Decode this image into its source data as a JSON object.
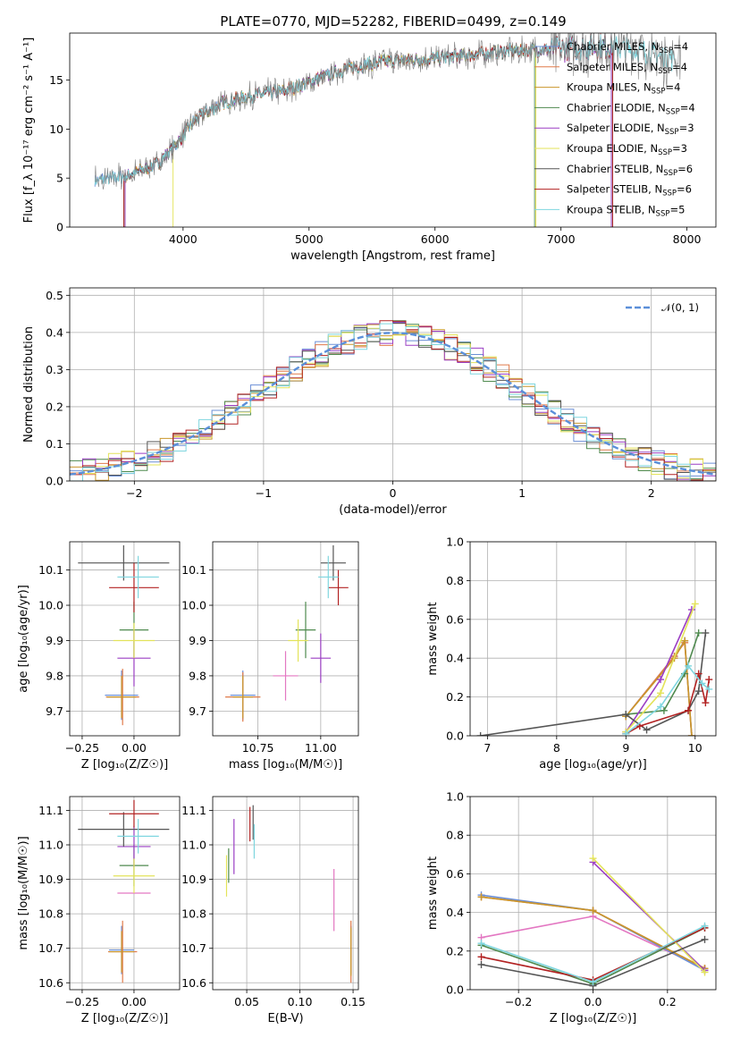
{
  "title": "PLATE=0770, MJD=52282, FIBERID=0499, z=0.149",
  "colors": {
    "Chabrier MILES": "#6b8fd6",
    "Salpeter MILES": "#e07a4a",
    "Kroupa MILES": "#c9962b",
    "Chabrier ELODIE": "#4f8a4f",
    "Salpeter ELODIE": "#9b3fc4",
    "Kroupa ELODIE": "#e3e35a",
    "Chabrier STELIB": "#555555",
    "Salpeter STELIB": "#b22222",
    "Kroupa STELIB": "#7fd6df",
    "data": "#808080",
    "normal": "#5b8fd9"
  },
  "chart_data": [
    {
      "type": "line",
      "xlabel": "wavelength [Angstrom, rest frame]",
      "ylabel": "Flux [f_λ 10⁻¹⁷ erg cm⁻² s⁻¹ A⁻¹]",
      "xlim": [
        3100,
        8230
      ],
      "ylim": [
        0,
        19.8
      ],
      "xticks": [
        4000,
        5000,
        6000,
        7000,
        8000
      ],
      "yticks": [
        0,
        5,
        10,
        15
      ],
      "legend": [
        {
          "base": "Chabrier MILES, N",
          "sub": "SSP",
          "tail": "=4"
        },
        {
          "base": "Salpeter MILES, N",
          "sub": "SSP",
          "tail": "=4"
        },
        {
          "base": "Kroupa MILES, N",
          "sub": "SSP",
          "tail": "=4"
        },
        {
          "base": "Chabrier ELODIE, N",
          "sub": "SSP",
          "tail": "=4"
        },
        {
          "base": "Salpeter ELODIE, N",
          "sub": "SSP",
          "tail": "=3"
        },
        {
          "base": "Kroupa ELODIE, N",
          "sub": "SSP",
          "tail": "=3"
        },
        {
          "base": "Chabrier STELIB, N",
          "sub": "SSP",
          "tail": "=6"
        },
        {
          "base": "Salpeter STELIB, N",
          "sub": "SSP",
          "tail": "=6"
        },
        {
          "base": "Kroupa STELIB, N",
          "sub": "SSP",
          "tail": "=5"
        }
      ],
      "model_ranges": [
        [
          3300,
          7400
        ],
        [
          3530,
          7410
        ],
        [
          3540,
          6800
        ],
        [
          3530,
          6790
        ],
        [
          3540,
          7400
        ],
        [
          3920,
          6800
        ],
        [
          3530,
          7410
        ],
        [
          3530,
          7410
        ],
        [
          3300,
          7900
        ]
      ],
      "continuum": [
        [
          3300,
          4.8
        ],
        [
          3550,
          5.2
        ],
        [
          3800,
          6.5
        ],
        [
          3950,
          8.5
        ],
        [
          4100,
          11
        ],
        [
          4300,
          12.6
        ],
        [
          4500,
          13.3
        ],
        [
          4800,
          13.9
        ],
        [
          5000,
          14.8
        ],
        [
          5300,
          16.2
        ],
        [
          5600,
          16.9
        ],
        [
          6000,
          17.2
        ],
        [
          6300,
          17.6
        ],
        [
          6600,
          18
        ],
        [
          7000,
          18.2
        ],
        [
          7400,
          18.5
        ],
        [
          7900,
          17.2
        ]
      ]
    },
    {
      "type": "histogram",
      "xlabel": "(data-model)/error",
      "ylabel": "Normed distribution",
      "xlim": [
        -2.5,
        2.5
      ],
      "ylim": [
        0,
        0.52
      ],
      "xticks": [
        -2,
        -1,
        0,
        1,
        2
      ],
      "yticks": [
        0.0,
        0.1,
        0.2,
        0.3,
        0.4,
        0.5
      ],
      "bin_width": 0.1,
      "legend": "𝒩(0, 1)",
      "normal": {
        "mu": 0,
        "sigma": 1
      }
    },
    {
      "type": "scatter",
      "xlabel": "Z [log₁₀(Z/Z☉)]",
      "ylabel": "age  [log₁₀(age/yr)]",
      "xlim": [
        -0.31,
        0.22
      ],
      "ylim": [
        9.63,
        10.18
      ],
      "xticks": [
        -0.25,
        0.0
      ],
      "yticks": [
        9.7,
        9.8,
        9.9,
        10.0,
        10.1
      ],
      "points": [
        {
          "x": -0.06,
          "y": 9.745,
          "xerr": 0.08,
          "yerr": 0.07
        },
        {
          "x": -0.055,
          "y": 9.74,
          "xerr": 0.08,
          "yerr": 0.08
        },
        {
          "x": -0.06,
          "y": 9.74,
          "xerr": 0.07,
          "yerr": 0.06
        },
        {
          "x": 0.0,
          "y": 9.93,
          "xerr": 0.07,
          "yerr": 0.08
        },
        {
          "x": 0.0,
          "y": 9.85,
          "xerr": 0.08,
          "yerr": 0.08
        },
        {
          "x": 0.0,
          "y": 9.9,
          "xerr": 0.1,
          "yerr": 0.05
        },
        {
          "x": -0.05,
          "y": 10.12,
          "xerr": 0.22,
          "yerr": 0.05
        },
        {
          "x": 0.0,
          "y": 10.05,
          "xerr": 0.12,
          "yerr": 0.07
        },
        {
          "x": 0.02,
          "y": 10.08,
          "xerr": 0.1,
          "yerr": 0.06
        }
      ]
    },
    {
      "type": "scatter",
      "xlabel": "mass [log₁₀(M/M☉)]",
      "ylabel": "",
      "xlim": [
        10.57,
        11.15
      ],
      "ylim": [
        9.63,
        10.18
      ],
      "xticks": [
        10.75,
        11.0
      ],
      "yticks": [
        9.7,
        9.8,
        9.9,
        10.0,
        10.1
      ],
      "points": [
        {
          "x": 10.69,
          "y": 9.745,
          "xerr": 0.05,
          "yerr": 0.07
        },
        {
          "x": 10.69,
          "y": 9.74,
          "xerr": 0.07,
          "yerr": 0.07
        },
        {
          "x": 10.69,
          "y": 9.74,
          "xerr": 0.04,
          "yerr": 0.06
        },
        {
          "x": 10.94,
          "y": 9.93,
          "xerr": 0.04,
          "yerr": 0.08
        },
        {
          "x": 11.0,
          "y": 9.85,
          "xerr": 0.04,
          "yerr": 0.07
        },
        {
          "x": 10.91,
          "y": 9.9,
          "xerr": 0.04,
          "yerr": 0.06
        },
        {
          "x": 11.05,
          "y": 10.12,
          "xerr": 0.05,
          "yerr": 0.05
        },
        {
          "x": 11.07,
          "y": 10.05,
          "xerr": 0.04,
          "yerr": 0.05
        },
        {
          "x": 11.03,
          "y": 10.08,
          "xerr": 0.04,
          "yerr": 0.06
        }
      ],
      "extra_points": [
        {
          "x": 10.86,
          "y": 9.8,
          "xerr": 0.05,
          "yerr": 0.07
        }
      ]
    },
    {
      "type": "line",
      "xlabel": "age  [log₁₀(age/yr)]",
      "ylabel": "mass weight",
      "xlim": [
        6.75,
        10.3
      ],
      "ylim": [
        0,
        1.0
      ],
      "xticks": [
        7,
        8,
        9,
        10
      ],
      "yticks": [
        0.0,
        0.2,
        0.4,
        0.6,
        0.8,
        1.0
      ],
      "series": [
        {
          "x": [
            9.0,
            9.7,
            9.85,
            9.95
          ],
          "y": [
            0.1,
            0.41,
            0.49,
            0.0
          ]
        },
        {
          "x": [
            9.0,
            9.7,
            9.85,
            9.95
          ],
          "y": [
            0.1,
            0.41,
            0.48,
            0.0
          ]
        },
        {
          "x": [
            9.0,
            9.7,
            9.85,
            9.95
          ],
          "y": [
            0.1,
            0.4,
            0.49,
            0.0
          ]
        },
        {
          "x": [
            9.0,
            9.55,
            9.85,
            10.05
          ],
          "y": [
            0.11,
            0.13,
            0.32,
            0.53
          ]
        },
        {
          "x": [
            9.0,
            9.5,
            9.95
          ],
          "y": [
            0.02,
            0.29,
            0.65
          ]
        },
        {
          "x": [
            9.0,
            9.5,
            10.0
          ],
          "y": [
            0.02,
            0.22,
            0.68
          ]
        },
        {
          "x": [
            6.9,
            9.0,
            9.3,
            9.9,
            10.05,
            10.15
          ],
          "y": [
            0.0,
            0.11,
            0.03,
            0.13,
            0.23,
            0.53
          ]
        },
        {
          "x": [
            9.0,
            9.2,
            9.9,
            10.05,
            10.15,
            10.2
          ],
          "y": [
            0.01,
            0.05,
            0.13,
            0.32,
            0.17,
            0.29
          ]
        },
        {
          "x": [
            9.0,
            9.5,
            9.9,
            10.1,
            10.2
          ],
          "y": [
            0.01,
            0.15,
            0.36,
            0.27,
            0.24
          ]
        }
      ]
    },
    {
      "type": "scatter",
      "xlabel": "Z [log₁₀(Z/Z☉)]",
      "ylabel": "mass [log₁₀(M/M☉)]",
      "xlim": [
        -0.31,
        0.22
      ],
      "ylim": [
        10.58,
        11.14
      ],
      "xticks": [
        -0.25,
        0.0
      ],
      "yticks": [
        10.6,
        10.7,
        10.8,
        10.9,
        11.0,
        11.1
      ],
      "points": [
        {
          "x": -0.06,
          "y": 10.695,
          "xerr": 0.06,
          "yerr": 0.07
        },
        {
          "x": -0.055,
          "y": 10.69,
          "xerr": 0.07,
          "yerr": 0.09
        },
        {
          "x": -0.06,
          "y": 10.69,
          "xerr": 0.06,
          "yerr": 0.06
        },
        {
          "x": 0.0,
          "y": 10.94,
          "xerr": 0.07,
          "yerr": 0.06
        },
        {
          "x": 0.0,
          "y": 10.995,
          "xerr": 0.08,
          "yerr": 0.06
        },
        {
          "x": 0.0,
          "y": 10.91,
          "xerr": 0.1,
          "yerr": 0.05
        },
        {
          "x": -0.05,
          "y": 11.045,
          "xerr": 0.22,
          "yerr": 0.05
        },
        {
          "x": 0.0,
          "y": 11.09,
          "xerr": 0.12,
          "yerr": 0.04
        },
        {
          "x": 0.02,
          "y": 11.025,
          "xerr": 0.1,
          "yerr": 0.05
        }
      ],
      "extra_points": [
        {
          "x": 0.0,
          "y": 10.86,
          "xerr": 0.08,
          "yerr": 0.0
        }
      ]
    },
    {
      "type": "scatter",
      "xlabel": "E(B-V)",
      "ylabel": "",
      "xlim": [
        0.018,
        0.155
      ],
      "ylim": [
        10.58,
        11.14
      ],
      "xticks": [
        0.05,
        0.1,
        0.15
      ],
      "yticks": [
        10.6,
        10.7,
        10.8,
        10.9,
        11.0,
        11.1
      ],
      "points": [
        {
          "x": 0.148,
          "y": 10.695,
          "xerr": 0.0,
          "yerr": 0.07
        },
        {
          "x": 0.148,
          "y": 10.69,
          "xerr": 0.0,
          "yerr": 0.09
        },
        {
          "x": 0.148,
          "y": 10.69,
          "xerr": 0.0,
          "yerr": 0.07
        },
        {
          "x": 0.033,
          "y": 10.94,
          "xerr": 0.0,
          "yerr": 0.05
        },
        {
          "x": 0.038,
          "y": 10.995,
          "xerr": 0.0,
          "yerr": 0.08
        },
        {
          "x": 0.031,
          "y": 10.91,
          "xerr": 0.0,
          "yerr": 0.06
        },
        {
          "x": 0.056,
          "y": 11.065,
          "xerr": 0.0,
          "yerr": 0.05
        },
        {
          "x": 0.053,
          "y": 11.06,
          "xerr": 0.0,
          "yerr": 0.05
        },
        {
          "x": 0.057,
          "y": 11.01,
          "xerr": 0.0,
          "yerr": 0.05
        }
      ],
      "extra_points": [
        {
          "x": 0.132,
          "y": 10.84,
          "xerr": 0.0,
          "yerr": 0.09
        }
      ]
    },
    {
      "type": "line",
      "xlabel": "Z [log₁₀(Z/Z☉)]",
      "ylabel": "mass weight",
      "xlim": [
        -0.33,
        0.33
      ],
      "ylim": [
        0,
        1.0
      ],
      "xticks": [
        -0.2,
        0.0,
        0.2
      ],
      "yticks": [
        0.0,
        0.2,
        0.4,
        0.6,
        0.8,
        1.0
      ],
      "series": [
        {
          "x": [
            -0.3,
            0.0,
            0.3
          ],
          "y": [
            0.49,
            0.41,
            0.1
          ]
        },
        {
          "x": [
            -0.3,
            0.0,
            0.3
          ],
          "y": [
            0.48,
            0.41,
            0.11
          ]
        },
        {
          "x": [
            -0.3,
            0.0,
            0.3
          ],
          "y": [
            0.48,
            0.41,
            0.11
          ]
        },
        {
          "x": [
            -0.3,
            0.0,
            0.3
          ],
          "y": [
            0.23,
            0.03,
            0.32
          ]
        },
        {
          "x": [
            0.0,
            0.3
          ],
          "y": [
            0.66,
            0.1
          ]
        },
        {
          "x": [
            0.0,
            0.3
          ],
          "y": [
            0.68,
            0.09
          ]
        },
        {
          "x": [
            -0.3,
            0.0,
            0.3
          ],
          "y": [
            0.13,
            0.02,
            0.26
          ]
        },
        {
          "x": [
            -0.3,
            0.0,
            0.3
          ],
          "y": [
            0.17,
            0.05,
            0.32
          ]
        },
        {
          "x": [
            -0.3,
            0.0,
            0.3
          ],
          "y": [
            0.24,
            0.04,
            0.33
          ]
        }
      ],
      "extra_series": [
        {
          "x": [
            -0.3,
            0.0,
            0.3
          ],
          "y": [
            0.27,
            0.38,
            0.11
          ]
        }
      ]
    }
  ]
}
